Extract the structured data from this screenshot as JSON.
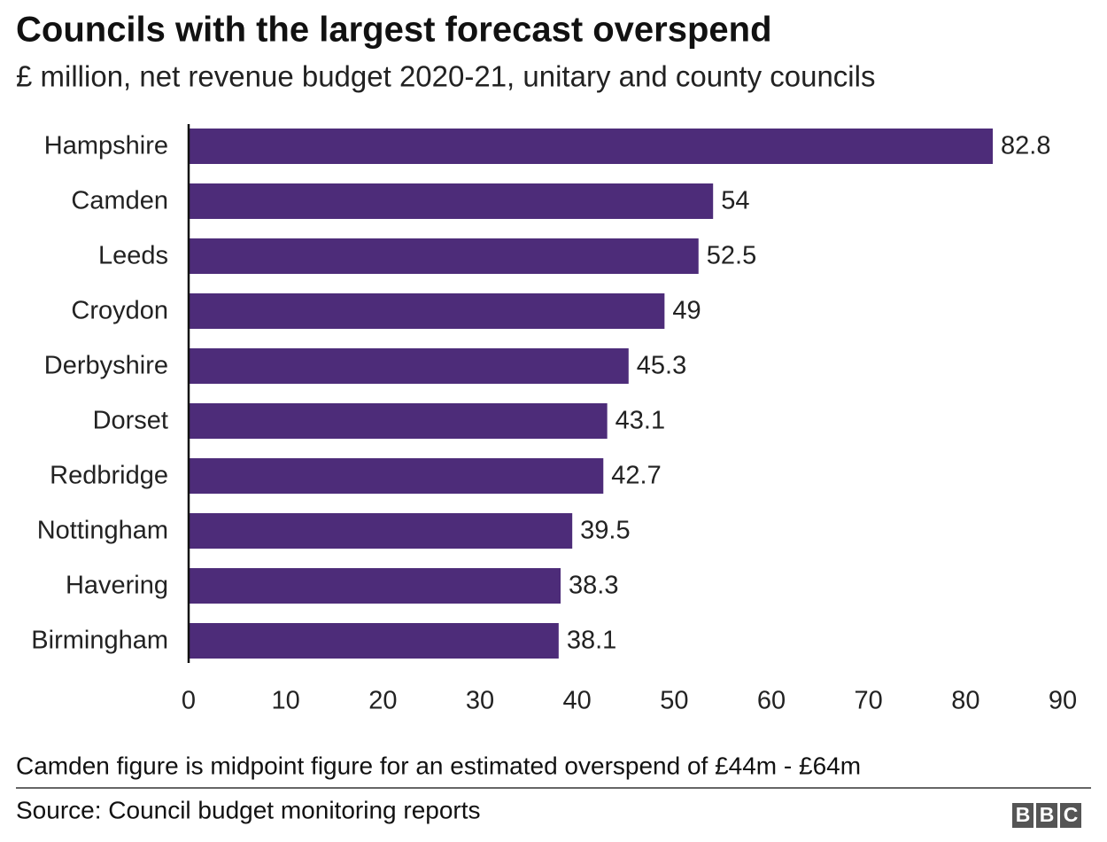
{
  "chart_data": {
    "type": "barh",
    "title": "Councils with the largest forecast overspend",
    "subtitle": "£ million, net revenue budget 2020-21, unitary and county councils",
    "categories": [
      "Hampshire",
      "Camden",
      "Leeds",
      "Croydon",
      "Derbyshire",
      "Dorset",
      "Redbridge",
      "Nottingham",
      "Havering",
      "Birmingham"
    ],
    "values": [
      82.8,
      54,
      52.5,
      49,
      45.3,
      43.1,
      42.7,
      39.5,
      38.3,
      38.1
    ],
    "color": "#4d2c79",
    "xlim": [
      0,
      90
    ],
    "xticks": [
      0,
      10,
      20,
      30,
      40,
      50,
      60,
      70,
      80,
      90
    ],
    "note": "Camden figure is midpoint figure for an estimated overspend of £44m - £64m",
    "source": "Source: Council budget monitoring reports",
    "logo": "BBC"
  }
}
